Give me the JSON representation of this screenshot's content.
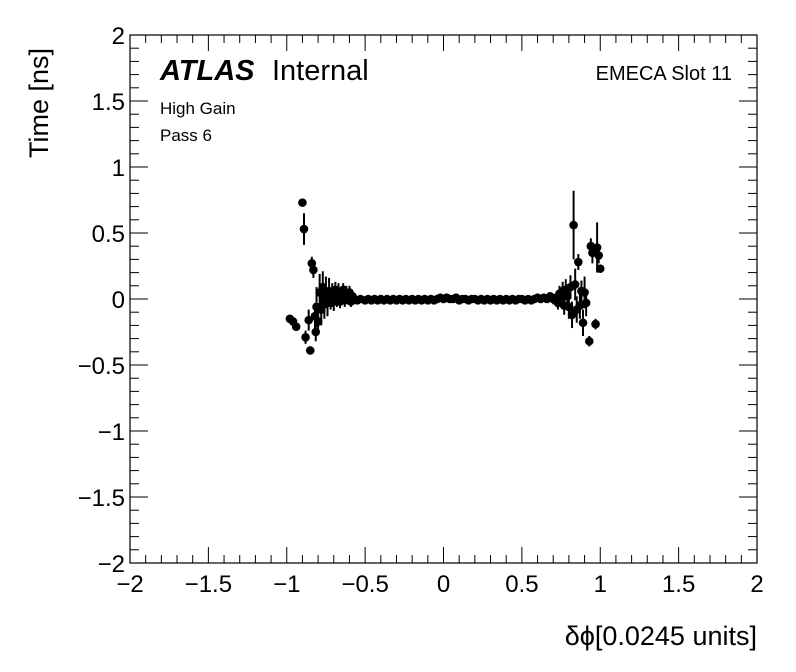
{
  "chart_data": {
    "type": "scatter",
    "title": "",
    "xlabel": "δϕ[0.0245 units]",
    "ylabel": "Time [ns]",
    "xlim": [
      -2,
      2
    ],
    "ylim": [
      -2,
      2
    ],
    "x_ticks": [
      "−2",
      "−1.5",
      "−1",
      "−0.5",
      "0",
      "0.5",
      "1",
      "1.5",
      "2"
    ],
    "y_ticks": [
      "2",
      "1.5",
      "1",
      "0.5",
      "0",
      "−0.5",
      "−1",
      "−1.5",
      "−2"
    ],
    "annotations": {
      "experiment": "ATLAS",
      "status": "Internal",
      "gain": "High Gain",
      "pass": "Pass 6",
      "region": "EMECA Slot 11"
    },
    "marker_color": "#000000",
    "error_bars": true,
    "grid": false,
    "points": [
      {
        "x": -0.98,
        "y": -0.15,
        "err": 0.02
      },
      {
        "x": -0.96,
        "y": -0.17,
        "err": 0.02
      },
      {
        "x": -0.94,
        "y": -0.21,
        "err": 0.03
      },
      {
        "x": -0.9,
        "y": 0.73,
        "err": 0.03
      },
      {
        "x": -0.89,
        "y": 0.53,
        "err": 0.12
      },
      {
        "x": -0.88,
        "y": -0.29,
        "err": 0.05
      },
      {
        "x": -0.86,
        "y": -0.16,
        "err": 0.08
      },
      {
        "x": -0.85,
        "y": -0.39,
        "err": 0.03
      },
      {
        "x": -0.84,
        "y": 0.27,
        "err": 0.05
      },
      {
        "x": -0.83,
        "y": 0.22,
        "err": 0.06
      },
      {
        "x": -0.82,
        "y": -0.13,
        "err": 0.1
      },
      {
        "x": -0.815,
        "y": -0.25,
        "err": 0.07
      },
      {
        "x": -0.81,
        "y": -0.06,
        "err": 0.15
      },
      {
        "x": -0.8,
        "y": -0.17,
        "err": 0.09
      },
      {
        "x": -0.79,
        "y": 0.05,
        "err": 0.14
      },
      {
        "x": -0.78,
        "y": -0.08,
        "err": 0.12
      },
      {
        "x": -0.77,
        "y": 0.09,
        "err": 0.12
      },
      {
        "x": -0.76,
        "y": -0.02,
        "err": 0.13
      },
      {
        "x": -0.75,
        "y": 0.05,
        "err": 0.12
      },
      {
        "x": -0.74,
        "y": -0.03,
        "err": 0.1
      },
      {
        "x": -0.73,
        "y": 0.06,
        "err": 0.1
      },
      {
        "x": -0.72,
        "y": 0.0,
        "err": 0.08
      },
      {
        "x": -0.71,
        "y": 0.03,
        "err": 0.09
      },
      {
        "x": -0.7,
        "y": -0.02,
        "err": 0.07
      },
      {
        "x": -0.69,
        "y": 0.07,
        "err": 0.06
      },
      {
        "x": -0.68,
        "y": 0.0,
        "err": 0.06
      },
      {
        "x": -0.67,
        "y": 0.05,
        "err": 0.07
      },
      {
        "x": -0.66,
        "y": -0.02,
        "err": 0.05
      },
      {
        "x": -0.65,
        "y": 0.03,
        "err": 0.06
      },
      {
        "x": -0.64,
        "y": 0.07,
        "err": 0.05
      },
      {
        "x": -0.63,
        "y": -0.01,
        "err": 0.05
      },
      {
        "x": -0.62,
        "y": 0.04,
        "err": 0.06
      },
      {
        "x": -0.61,
        "y": 0.0,
        "err": 0.04
      },
      {
        "x": -0.6,
        "y": 0.05,
        "err": 0.05
      },
      {
        "x": -0.59,
        "y": -0.02,
        "err": 0.04
      },
      {
        "x": -0.58,
        "y": 0.02,
        "err": 0.03
      },
      {
        "x": -0.57,
        "y": 0.0,
        "err": 0.03
      },
      {
        "x": -0.55,
        "y": -0.01,
        "err": 0.02
      },
      {
        "x": -0.53,
        "y": 0.0,
        "err": 0.02
      },
      {
        "x": -0.5,
        "y": -0.01,
        "err": 0.02
      },
      {
        "x": -0.48,
        "y": 0.0,
        "err": 0.01
      },
      {
        "x": -0.46,
        "y": -0.01,
        "err": 0.01
      },
      {
        "x": -0.44,
        "y": 0.0,
        "err": 0.01
      },
      {
        "x": -0.42,
        "y": -0.01,
        "err": 0.01
      },
      {
        "x": -0.4,
        "y": 0.0,
        "err": 0.01
      },
      {
        "x": -0.38,
        "y": -0.01,
        "err": 0.01
      },
      {
        "x": -0.36,
        "y": 0.0,
        "err": 0.01
      },
      {
        "x": -0.34,
        "y": -0.01,
        "err": 0.01
      },
      {
        "x": -0.32,
        "y": 0.0,
        "err": 0.01
      },
      {
        "x": -0.3,
        "y": -0.01,
        "err": 0.01
      },
      {
        "x": -0.28,
        "y": 0.0,
        "err": 0.01
      },
      {
        "x": -0.26,
        "y": -0.01,
        "err": 0.01
      },
      {
        "x": -0.24,
        "y": 0.0,
        "err": 0.01
      },
      {
        "x": -0.22,
        "y": -0.01,
        "err": 0.01
      },
      {
        "x": -0.2,
        "y": 0.0,
        "err": 0.01
      },
      {
        "x": -0.18,
        "y": -0.01,
        "err": 0.01
      },
      {
        "x": -0.16,
        "y": 0.0,
        "err": 0.01
      },
      {
        "x": -0.14,
        "y": -0.01,
        "err": 0.01
      },
      {
        "x": -0.12,
        "y": 0.0,
        "err": 0.01
      },
      {
        "x": -0.1,
        "y": -0.01,
        "err": 0.01
      },
      {
        "x": -0.08,
        "y": 0.0,
        "err": 0.01
      },
      {
        "x": -0.06,
        "y": -0.01,
        "err": 0.01
      },
      {
        "x": -0.04,
        "y": 0.0,
        "err": 0.01
      },
      {
        "x": -0.02,
        "y": 0.01,
        "err": 0.01
      },
      {
        "x": 0.0,
        "y": 0.0,
        "err": 0.01
      },
      {
        "x": 0.02,
        "y": 0.01,
        "err": 0.01
      },
      {
        "x": 0.04,
        "y": 0.0,
        "err": 0.01
      },
      {
        "x": 0.06,
        "y": 0.0,
        "err": 0.01
      },
      {
        "x": 0.08,
        "y": 0.01,
        "err": 0.01
      },
      {
        "x": 0.1,
        "y": -0.01,
        "err": 0.01
      },
      {
        "x": 0.12,
        "y": 0.0,
        "err": 0.01
      },
      {
        "x": 0.14,
        "y": 0.0,
        "err": 0.01
      },
      {
        "x": 0.16,
        "y": -0.01,
        "err": 0.01
      },
      {
        "x": 0.18,
        "y": 0.0,
        "err": 0.01
      },
      {
        "x": 0.2,
        "y": 0.0,
        "err": 0.01
      },
      {
        "x": 0.22,
        "y": -0.01,
        "err": 0.01
      },
      {
        "x": 0.24,
        "y": 0.0,
        "err": 0.01
      },
      {
        "x": 0.26,
        "y": -0.01,
        "err": 0.01
      },
      {
        "x": 0.28,
        "y": 0.0,
        "err": 0.01
      },
      {
        "x": 0.3,
        "y": -0.01,
        "err": 0.01
      },
      {
        "x": 0.32,
        "y": 0.0,
        "err": 0.01
      },
      {
        "x": 0.34,
        "y": -0.01,
        "err": 0.01
      },
      {
        "x": 0.36,
        "y": 0.0,
        "err": 0.01
      },
      {
        "x": 0.38,
        "y": -0.01,
        "err": 0.01
      },
      {
        "x": 0.4,
        "y": 0.0,
        "err": 0.01
      },
      {
        "x": 0.42,
        "y": -0.01,
        "err": 0.01
      },
      {
        "x": 0.44,
        "y": 0.0,
        "err": 0.01
      },
      {
        "x": 0.46,
        "y": -0.01,
        "err": 0.01
      },
      {
        "x": 0.48,
        "y": 0.0,
        "err": 0.01
      },
      {
        "x": 0.5,
        "y": 0.0,
        "err": 0.01
      },
      {
        "x": 0.52,
        "y": -0.01,
        "err": 0.01
      },
      {
        "x": 0.54,
        "y": 0.0,
        "err": 0.01
      },
      {
        "x": 0.56,
        "y": -0.01,
        "err": 0.01
      },
      {
        "x": 0.58,
        "y": 0.0,
        "err": 0.02
      },
      {
        "x": 0.6,
        "y": 0.01,
        "err": 0.02
      },
      {
        "x": 0.62,
        "y": 0.0,
        "err": 0.02
      },
      {
        "x": 0.64,
        "y": 0.01,
        "err": 0.02
      },
      {
        "x": 0.66,
        "y": 0.0,
        "err": 0.03
      },
      {
        "x": 0.68,
        "y": 0.02,
        "err": 0.03
      },
      {
        "x": 0.7,
        "y": 0.0,
        "err": 0.04
      },
      {
        "x": 0.72,
        "y": 0.01,
        "err": 0.04
      },
      {
        "x": 0.73,
        "y": -0.03,
        "err": 0.05
      },
      {
        "x": 0.74,
        "y": 0.04,
        "err": 0.06
      },
      {
        "x": 0.75,
        "y": 0.0,
        "err": 0.06
      },
      {
        "x": 0.76,
        "y": 0.06,
        "err": 0.07
      },
      {
        "x": 0.77,
        "y": -0.05,
        "err": 0.07
      },
      {
        "x": 0.78,
        "y": 0.07,
        "err": 0.08
      },
      {
        "x": 0.79,
        "y": 0.02,
        "err": 0.08
      },
      {
        "x": 0.8,
        "y": -0.06,
        "err": 0.09
      },
      {
        "x": 0.81,
        "y": 0.09,
        "err": 0.09
      },
      {
        "x": 0.82,
        "y": -0.12,
        "err": 0.1
      },
      {
        "x": 0.83,
        "y": 0.56,
        "err": 0.26
      },
      {
        "x": 0.84,
        "y": 0.11,
        "err": 0.12
      },
      {
        "x": 0.85,
        "y": -0.08,
        "err": 0.1
      },
      {
        "x": 0.86,
        "y": 0.28,
        "err": 0.06
      },
      {
        "x": 0.87,
        "y": -0.05,
        "err": 0.1
      },
      {
        "x": 0.88,
        "y": 0.06,
        "err": 0.08
      },
      {
        "x": 0.89,
        "y": -0.18,
        "err": 0.1
      },
      {
        "x": 0.9,
        "y": 0.05,
        "err": 0.12
      },
      {
        "x": 0.91,
        "y": -0.03,
        "err": 0.1
      },
      {
        "x": 0.93,
        "y": -0.32,
        "err": 0.04
      },
      {
        "x": 0.94,
        "y": 0.4,
        "err": 0.06
      },
      {
        "x": 0.95,
        "y": 0.35,
        "err": 0.08
      },
      {
        "x": 0.97,
        "y": -0.19,
        "err": 0.04
      },
      {
        "x": 0.98,
        "y": 0.39,
        "err": 0.19
      },
      {
        "x": 0.99,
        "y": 0.33,
        "err": 0.06
      },
      {
        "x": 1.0,
        "y": 0.23,
        "err": 0.03
      }
    ]
  }
}
